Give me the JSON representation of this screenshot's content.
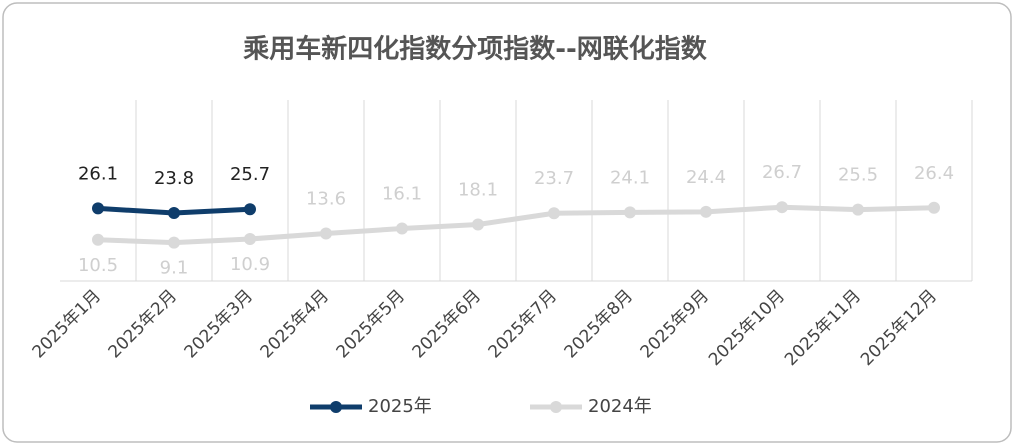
{
  "chart_data": {
    "type": "line",
    "title": "乘用车新四化指数分项指数--网联化指数",
    "categories": [
      "2025年1月",
      "2025年2月",
      "2025年3月",
      "2025年4月",
      "2025年5月",
      "2025年6月",
      "2025年7月",
      "2025年8月",
      "2025年9月",
      "2025年10月",
      "2025年11月",
      "2025年12月"
    ],
    "series": [
      {
        "name": "2025年",
        "color": "#0f3d6b",
        "label_color": "#222222",
        "values": [
          26.1,
          23.8,
          25.7,
          null,
          null,
          null,
          null,
          null,
          null,
          null,
          null,
          null
        ]
      },
      {
        "name": "2024年",
        "color": "#d9d9d9",
        "label_color": "#cfcfcf",
        "values": [
          10.5,
          9.1,
          10.9,
          13.6,
          16.1,
          18.1,
          23.7,
          24.1,
          24.4,
          26.7,
          25.5,
          26.4
        ]
      }
    ],
    "ylim": [
      -10,
      80
    ],
    "grid": true
  }
}
